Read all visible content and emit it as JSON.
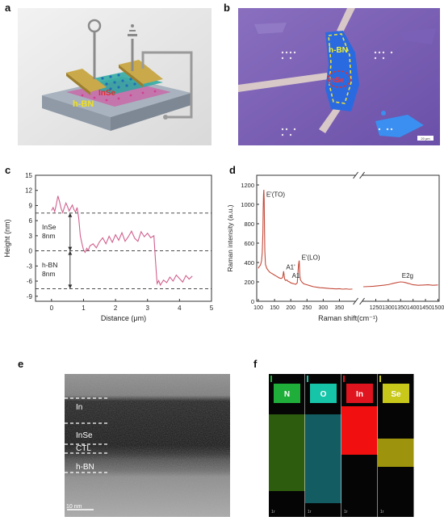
{
  "panels": {
    "a": {
      "label": "a",
      "hbn_text": "h-BN",
      "inse_text": "InSe"
    },
    "b": {
      "label": "b",
      "hbn_text": "h-BN",
      "inse_text": "InSe",
      "scalebar_text": "20 μm"
    },
    "c": {
      "label": "c"
    },
    "d": {
      "label": "d"
    },
    "e": {
      "label": "e",
      "layers": [
        "In",
        "InSe",
        "CTL",
        "h-BN"
      ],
      "scalebar_text": "10 nm"
    },
    "f": {
      "label": "f",
      "tiles": [
        {
          "element": "N",
          "color": "#1fae3a",
          "map_color": "#5fc71a"
        },
        {
          "element": "O",
          "color": "#16c4a8",
          "map_color": "#1fb4bf"
        },
        {
          "element": "In",
          "color": "#e0141e",
          "map_color": "#ff1010"
        },
        {
          "element": "Se",
          "color": "#c8c81a",
          "map_color": "#e0d010"
        }
      ],
      "scale_text": "1r"
    }
  },
  "chart_data": [
    {
      "type": "line",
      "panel": "c",
      "xlabel": "Distance (μm)",
      "ylabel": "Height (nm)",
      "xlim": [
        -0.5,
        5
      ],
      "ylim": [
        -10,
        15
      ],
      "xticks": [
        0,
        1,
        2,
        3,
        4,
        5
      ],
      "yticks": [
        -9,
        -6,
        -3,
        0,
        3,
        6,
        9,
        12,
        15
      ],
      "annotations": [
        {
          "text_lines": [
            "InSe",
            "8nm"
          ],
          "span": [
            0,
            7.5
          ]
        },
        {
          "text_lines": [
            "h-BN",
            "8nm"
          ],
          "span": [
            -7.5,
            0
          ]
        }
      ],
      "dashed_levels": [
        7.5,
        0,
        -7.5
      ],
      "series": [
        {
          "color": "#d0608e",
          "x": [
            0,
            0.05,
            0.1,
            0.15,
            0.2,
            0.25,
            0.3,
            0.35,
            0.4,
            0.45,
            0.5,
            0.55,
            0.6,
            0.65,
            0.7,
            0.75,
            0.8,
            0.85,
            0.9,
            0.95,
            1.0,
            1.05,
            1.1,
            1.15,
            1.2,
            1.3,
            1.4,
            1.5,
            1.6,
            1.7,
            1.8,
            1.9,
            2.0,
            2.1,
            2.2,
            2.3,
            2.4,
            2.5,
            2.6,
            2.7,
            2.8,
            2.9,
            3.0,
            3.1,
            3.2,
            3.25,
            3.3,
            3.35,
            3.4,
            3.5,
            3.6,
            3.7,
            3.8,
            3.9,
            4.0,
            4.1,
            4.2,
            4.3,
            4.4
          ],
          "y": [
            8,
            8.6,
            7.8,
            9.2,
            10.9,
            9.8,
            8.4,
            7.6,
            8.6,
            9.5,
            8.8,
            7.9,
            8.5,
            9.1,
            8.2,
            7.7,
            8.6,
            6.5,
            3.0,
            1.5,
            0.2,
            -0.3,
            0.5,
            0.1,
            1.0,
            1.4,
            0.6,
            1.8,
            2.6,
            1.4,
            2.9,
            1.7,
            3.2,
            2.1,
            3.6,
            1.9,
            2.8,
            3.9,
            2.5,
            1.9,
            3.8,
            2.8,
            3.5,
            2.6,
            3.0,
            -2.0,
            -6.5,
            -5.9,
            -6.8,
            -5.8,
            -6.3,
            -5.2,
            -6.0,
            -4.8,
            -5.5,
            -6.2,
            -4.9,
            -5.6,
            -5.0
          ]
        }
      ]
    },
    {
      "type": "line",
      "panel": "d",
      "xlabel": "Raman shift(cm⁻¹)",
      "ylabel": "Raman intensity (a.u.)",
      "ylim": [
        0,
        1300
      ],
      "yticks": [
        0,
        200,
        400,
        600,
        800,
        1000,
        1200
      ],
      "axis_break": true,
      "xticks_left": [
        100,
        150,
        200,
        250,
        300,
        350
      ],
      "xticks_right": [
        1250,
        1300,
        1350,
        1400,
        1450,
        1500
      ],
      "xlim_left": [
        95,
        400
      ],
      "xlim_right": [
        1195,
        1505
      ],
      "peak_labels": [
        {
          "text": "E'(TO)",
          "x": 117,
          "y": 1080
        },
        {
          "text": "A1'",
          "x": 178,
          "y": 330
        },
        {
          "text": "A1",
          "x": 196,
          "y": 240
        },
        {
          "text": "E'(LO)",
          "x": 226,
          "y": 430
        },
        {
          "text": "E2g",
          "x": 1345,
          "y": 240
        }
      ],
      "series": [
        {
          "color": "#c44a3a",
          "left": {
            "x": [
              100,
              103,
              106,
              108,
              110,
              112,
              114,
              115,
              116,
              117,
              118,
              119,
              120,
              122,
              124,
              126,
              130,
              135,
              140,
              145,
              150,
              155,
              160,
              165,
              170,
              175,
              178,
              181,
              184,
              188,
              192,
              196,
              200,
              205,
              210,
              215,
              220,
              224,
              226,
              228,
              230,
              234,
              240,
              250,
              260,
              270,
              280,
              290,
              300,
              310,
              320,
              330,
              340,
              350,
              360,
              370,
              380,
              390
            ],
            "y": [
              340,
              360,
              370,
              390,
              420,
              500,
              700,
              950,
              1100,
              1150,
              1050,
              750,
              520,
              380,
              360,
              340,
              320,
              300,
              290,
              280,
              270,
              260,
              250,
              240,
              235,
              245,
              310,
              230,
              215,
              220,
              205,
              200,
              190,
              185,
              180,
              175,
              190,
              380,
              420,
              260,
              220,
              200,
              180,
              170,
              160,
              150,
              145,
              140,
              138,
              135,
              132,
              130,
              128,
              130,
              125,
              128,
              124,
              126
            ]
          },
          "right": {
            "x": [
              1200,
              1220,
              1240,
              1260,
              1280,
              1300,
              1310,
              1320,
              1330,
              1340,
              1350,
              1360,
              1370,
              1380,
              1390,
              1400,
              1410,
              1420,
              1440,
              1460,
              1480,
              1500
            ],
            "y": [
              150,
              152,
              155,
              160,
              165,
              172,
              178,
              185,
              190,
              196,
              200,
              198,
              192,
              185,
              178,
              170,
              168,
              165,
              167,
              170,
              165,
              168
            ]
          }
        }
      ]
    }
  ]
}
